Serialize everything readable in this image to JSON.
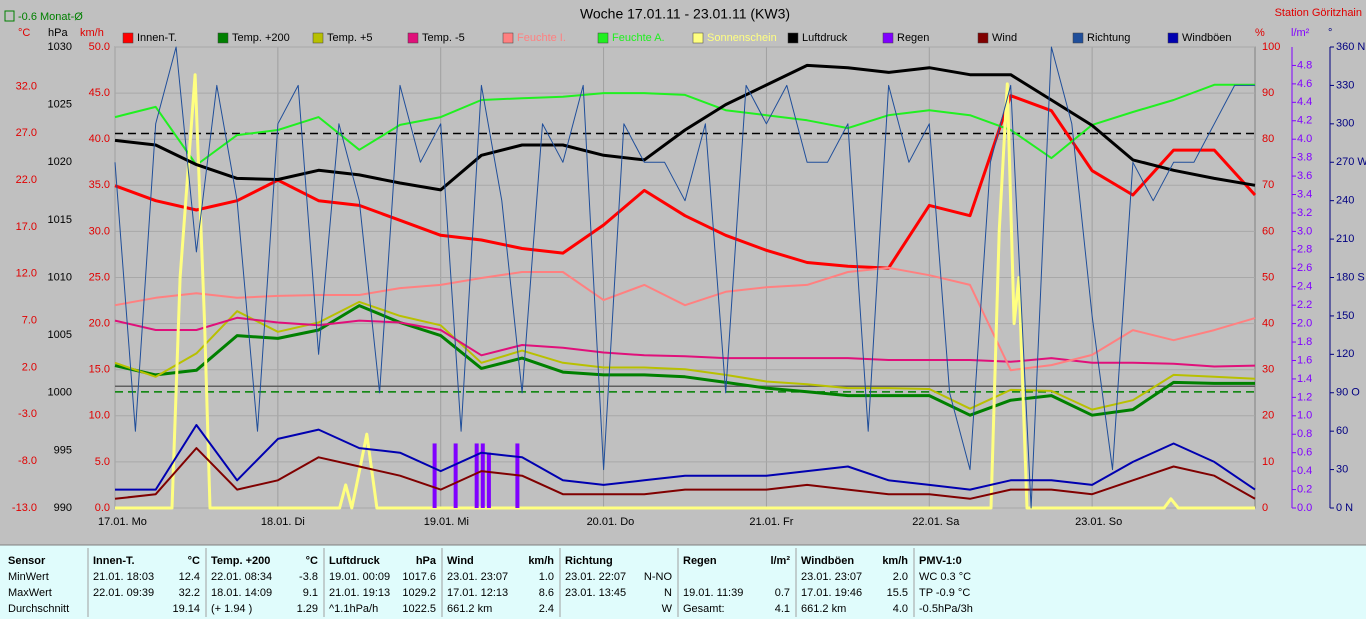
{
  "chart_data": {
    "type": "line",
    "title": "Woche 17.01.11 - 23.01.11 (KW3)",
    "station": "Station Göritzhain",
    "month_mean_label": "-0.6 Monat-Ø",
    "grid": true,
    "grid_axis": "speed",
    "xlim": [
      0,
      168
    ],
    "xticks": [
      {
        "value": 0,
        "label": "17.01. Mo"
      },
      {
        "value": 24,
        "label": "18.01. Di"
      },
      {
        "value": 48,
        "label": "19.01. Mi"
      },
      {
        "value": 72,
        "label": "20.01. Do"
      },
      {
        "value": 96,
        "label": "21.01. Fr"
      },
      {
        "value": 120,
        "label": "22.01. Sa"
      },
      {
        "value": 144,
        "label": "23.01. So"
      }
    ],
    "x": [
      0,
      6,
      12,
      18,
      24,
      30,
      36,
      42,
      48,
      54,
      60,
      66,
      72,
      78,
      84,
      90,
      96,
      102,
      108,
      114,
      120,
      126,
      132,
      138,
      144,
      150,
      156,
      162,
      168
    ],
    "axes": [
      {
        "id": "celsius",
        "unit": "°C",
        "color": "#e00000",
        "lim": [
          -13,
          36.2
        ],
        "ticks": [
          {
            "value": -13,
            "label": "-13.0"
          },
          {
            "value": -8,
            "label": "-8.0"
          },
          {
            "value": -3,
            "label": "-3.0"
          },
          {
            "value": 2,
            "label": "2.0"
          },
          {
            "value": 7,
            "label": "7.0"
          },
          {
            "value": 12,
            "label": "12.0"
          },
          {
            "value": 17,
            "label": "17.0"
          },
          {
            "value": 22,
            "label": "22.0"
          },
          {
            "value": 27,
            "label": "27.0"
          },
          {
            "value": 32,
            "label": "32.0"
          }
        ]
      },
      {
        "id": "hpa",
        "unit": "hPa",
        "color": "#000000",
        "lim": [
          990,
          1030
        ],
        "ticks": [
          990,
          995,
          1000,
          1005,
          1010,
          1015,
          1020,
          1025,
          1030
        ]
      },
      {
        "id": "speed",
        "unit": "km/h",
        "color": "#e00000",
        "lim": [
          0,
          50
        ],
        "ticks": [
          {
            "value": 0,
            "label": "0.0"
          },
          {
            "value": 5,
            "label": "5.0"
          },
          {
            "value": 10,
            "label": "10.0"
          },
          {
            "value": 15,
            "label": "15.0"
          },
          {
            "value": 20,
            "label": "20.0"
          },
          {
            "value": 25,
            "label": "25.0"
          },
          {
            "value": 30,
            "label": "30.0"
          },
          {
            "value": 35,
            "label": "35.0"
          },
          {
            "value": 40,
            "label": "40.0"
          },
          {
            "value": 45,
            "label": "45.0"
          },
          {
            "value": 50,
            "label": "50.0"
          }
        ]
      },
      {
        "id": "pct",
        "unit": "%",
        "color": "#e00000",
        "lim": [
          0,
          100
        ],
        "ticks": [
          0,
          10,
          20,
          30,
          40,
          50,
          60,
          70,
          80,
          90,
          100
        ]
      },
      {
        "id": "rain",
        "unit": "l/m²",
        "color": "#8000ff",
        "lim": [
          0,
          5.0
        ],
        "ticks": [
          {
            "value": 0,
            "label": "0.0"
          },
          0.2,
          0.4,
          0.6,
          0.8,
          {
            "value": 1,
            "label": "1.0"
          },
          1.2,
          1.4,
          1.6,
          1.8,
          {
            "value": 2,
            "label": "2.0"
          },
          2.2,
          2.4,
          2.6,
          2.8,
          {
            "value": 3,
            "label": "3.0"
          },
          3.2,
          3.4,
          3.6,
          3.8,
          {
            "value": 4,
            "label": "4.0"
          },
          4.2,
          4.4,
          4.6,
          4.8
        ]
      },
      {
        "id": "dir",
        "unit": "°",
        "color": "#000080",
        "lim": [
          0,
          360
        ],
        "ticks": [
          {
            "value": 0,
            "label": "0 N"
          },
          30,
          60,
          {
            "value": 90,
            "label": "90 O"
          },
          120,
          150,
          {
            "value": 180,
            "label": "180 S"
          },
          210,
          240,
          {
            "value": 270,
            "label": "270 W"
          },
          300,
          330,
          {
            "value": 360,
            "label": "360 N"
          }
        ]
      }
    ],
    "ref_lines": [
      {
        "axis": "celsius",
        "value": 0,
        "color": "#606060",
        "dash": false
      },
      {
        "axis": "hpa",
        "value": 1022.5,
        "color": "#000000",
        "dash": true
      },
      {
        "axis": "celsius",
        "value": -0.6,
        "color": "#008000",
        "dash": true
      }
    ],
    "series": [
      {
        "name": "Innen-T.",
        "color": "#ff0000",
        "axis": "celsius",
        "width": 3,
        "values": [
          21.4,
          19.8,
          18.8,
          19.8,
          22.0,
          19.8,
          19.3,
          17.7,
          16.1,
          15.6,
          14.7,
          14.2,
          17.2,
          20.9,
          18.2,
          16.1,
          14.5,
          13.2,
          12.8,
          12.6,
          19.3,
          18.2,
          31.0,
          29.4,
          23.0,
          20.4,
          25.2,
          25.2,
          20.4
        ]
      },
      {
        "name": "Temp. +200",
        "color": "#008000",
        "axis": "celsius",
        "width": 3,
        "values": [
          2.2,
          1.2,
          1.7,
          5.4,
          5.1,
          6.0,
          8.6,
          6.8,
          5.4,
          1.9,
          3.0,
          1.5,
          1.2,
          1.2,
          1.0,
          0.4,
          -0.2,
          -0.6,
          -1.0,
          -1.0,
          -1.0,
          -3.1,
          -1.5,
          -1.0,
          -3.1,
          -2.5,
          0.4,
          0.3,
          0.3
        ]
      },
      {
        "name": "Temp. +5",
        "color": "#b8c000",
        "axis": "celsius",
        "width": 2,
        "values": [
          2.5,
          1.0,
          3.5,
          8.0,
          5.8,
          6.8,
          9.0,
          7.5,
          6.5,
          2.5,
          3.8,
          2.5,
          2.0,
          2.0,
          1.8,
          1.2,
          0.5,
          0.2,
          -0.2,
          -0.2,
          -0.3,
          -2.4,
          -0.4,
          -0.5,
          -2.5,
          -1.5,
          1.2,
          1.0,
          0.8
        ]
      },
      {
        "name": "Temp. -5",
        "color": "#e0107a",
        "axis": "celsius",
        "width": 2,
        "values": [
          7.0,
          6.0,
          6.0,
          7.3,
          6.8,
          6.5,
          7.0,
          6.8,
          6.0,
          3.3,
          4.4,
          4.1,
          3.6,
          3.3,
          3.2,
          3.0,
          3.0,
          3.0,
          3.0,
          2.8,
          2.8,
          2.8,
          2.6,
          3.0,
          2.5,
          2.5,
          2.4,
          2.1,
          2.2
        ]
      },
      {
        "name": "Feuchte I.",
        "color": "#ff8080",
        "axis": "pct",
        "width": 2,
        "legend_text_colored": true,
        "values": [
          44.0,
          45.6,
          46.6,
          45.6,
          46.0,
          46.2,
          46.2,
          47.7,
          48.4,
          49.9,
          51.2,
          51.2,
          45.1,
          48.4,
          44.0,
          46.9,
          47.9,
          48.4,
          51.2,
          52.1,
          50.5,
          48.4,
          29.9,
          31.0,
          33.2,
          38.6,
          36.4,
          38.6,
          41.2
        ]
      },
      {
        "name": "Feuchte A.",
        "color": "#20f020",
        "axis": "pct",
        "width": 2,
        "legend_text_colored": true,
        "values": [
          84.8,
          87.0,
          74.4,
          80.9,
          82.0,
          84.8,
          77.7,
          83.1,
          84.8,
          88.5,
          88.9,
          89.2,
          90.0,
          90.0,
          89.6,
          86.3,
          85.2,
          84.1,
          82.4,
          85.2,
          86.3,
          85.2,
          82.0,
          75.9,
          83.1,
          85.9,
          88.5,
          91.8,
          91.8
        ]
      },
      {
        "name": "Sonnenschein",
        "color": "#ffff80",
        "axis": "pct",
        "width": 3,
        "legend_text_colored": true,
        "x": [
          0,
          8.4,
          9.6,
          11.8,
          13.2,
          14.0,
          33.1,
          34.0,
          34.9,
          35.6,
          37.1,
          38.6,
          129.1,
          130.3,
          131.5,
          132.5,
          133.2,
          134.4,
          154.6,
          155.6,
          156.7,
          168
        ],
        "values": [
          0,
          0,
          50,
          94,
          40,
          0,
          0,
          5,
          0,
          5,
          16,
          0,
          0,
          60,
          92,
          40,
          50,
          0,
          0,
          2,
          0,
          0
        ]
      },
      {
        "name": "Luftdruck",
        "color": "#000000",
        "axis": "hpa",
        "width": 3,
        "values": [
          1021.9,
          1021.5,
          1019.8,
          1018.6,
          1018.5,
          1019.3,
          1018.9,
          1018.2,
          1017.6,
          1020.6,
          1021.5,
          1021.5,
          1020.6,
          1020.2,
          1022.8,
          1025.0,
          1026.7,
          1028.4,
          1028.2,
          1027.8,
          1028.2,
          1027.6,
          1027.6,
          1025.4,
          1023.2,
          1020.2,
          1019.3,
          1018.6,
          1018.0
        ]
      },
      {
        "name": "Regen",
        "color": "#8000ff",
        "axis": "rain",
        "type": "bar",
        "x": [
          47.1,
          50.2,
          53.3,
          54.2,
          55.1,
          59.3
        ],
        "values": [
          0.7,
          0.7,
          0.7,
          0.7,
          0.6,
          0.7
        ]
      },
      {
        "name": "Wind",
        "color": "#800000",
        "axis": "speed",
        "width": 2,
        "values": [
          1.0,
          1.5,
          6.5,
          2.0,
          3.0,
          5.5,
          4.5,
          3.5,
          2.0,
          4.0,
          3.5,
          1.5,
          1.5,
          1.5,
          2.0,
          2.0,
          2.0,
          2.5,
          2.0,
          1.5,
          1.5,
          1.0,
          2.0,
          2.0,
          1.5,
          3.0,
          4.5,
          3.5,
          1.0
        ]
      },
      {
        "name": "Richtung",
        "color": "#1f4e9a",
        "axis": "dir",
        "width": 1,
        "x": [
          0,
          3,
          6,
          9,
          12,
          15,
          18,
          21,
          24,
          27,
          30,
          33,
          36,
          39,
          42,
          45,
          48,
          51,
          54,
          57,
          60,
          63,
          66,
          69,
          72,
          75,
          78,
          81,
          84,
          87,
          90,
          93,
          96,
          99,
          102,
          105,
          108,
          111,
          114,
          117,
          120,
          123,
          126,
          129,
          132,
          135,
          138,
          141,
          144,
          147,
          150,
          153,
          156,
          159,
          162,
          165,
          168
        ],
        "values": [
          270,
          60,
          300,
          360,
          200,
          330,
          240,
          60,
          300,
          330,
          120,
          300,
          240,
          90,
          330,
          270,
          300,
          60,
          330,
          240,
          90,
          300,
          270,
          330,
          30,
          300,
          270,
          270,
          240,
          300,
          90,
          330,
          300,
          330,
          270,
          270,
          300,
          60,
          330,
          270,
          300,
          90,
          30,
          270,
          330,
          0,
          360,
          300,
          150,
          30,
          270,
          240,
          270,
          270,
          300,
          330,
          330
        ]
      },
      {
        "name": "Windböen",
        "color": "#0000b0",
        "axis": "speed",
        "width": 2,
        "values": [
          2.0,
          2.0,
          9.0,
          3.0,
          7.5,
          8.5,
          6.5,
          6.0,
          4.0,
          6.0,
          5.5,
          3.0,
          2.5,
          3.0,
          3.5,
          3.5,
          3.5,
          4.0,
          4.5,
          3.0,
          2.5,
          2.0,
          3.0,
          3.0,
          2.5,
          5.0,
          7.0,
          5.0,
          2.0
        ]
      }
    ]
  },
  "stats": {
    "header": [
      "Sensor",
      "MinWert",
      "MaxWert",
      "Durchschnitt"
    ],
    "columns": [
      {
        "title": "Innen-T.",
        "unit": "°C",
        "rows": [
          {
            "left": "21.01. 18:03",
            "right": "12.4"
          },
          {
            "left": "22.01. 09:39",
            "right": "32.2"
          },
          {
            "right": "19.14"
          }
        ]
      },
      {
        "title": "Temp. +200",
        "unit": "°C",
        "rows": [
          {
            "left": "22.01. 08:34",
            "right": "-3.8"
          },
          {
            "left": "18.01. 14:09",
            "right": "9.1"
          },
          {
            "left": "(+ 1.94 )",
            "right": "1.29"
          }
        ]
      },
      {
        "title": "Luftdruck",
        "unit": "hPa",
        "rows": [
          {
            "left": "19.01. 00:09",
            "right": "1017.6"
          },
          {
            "left": "21.01. 19:13",
            "right": "1029.2"
          },
          {
            "left": "^1.1hPa/h",
            "right": "1022.5"
          }
        ]
      },
      {
        "title": "Wind",
        "unit": "km/h",
        "rows": [
          {
            "left": "23.01. 23:07",
            "right": "1.0"
          },
          {
            "left": "17.01. 12:13",
            "right": "8.6"
          },
          {
            "left": "661.2 km",
            "right": "2.4"
          }
        ]
      },
      {
        "title": "Richtung",
        "rows": [
          {
            "left": "23.01. 22:07",
            "right": "N-NO"
          },
          {
            "left": "23.01. 13:45",
            "right": "N"
          },
          {
            "right": "W"
          }
        ]
      },
      {
        "title": "Regen",
        "unit": "l/m²",
        "rows": [
          {},
          {
            "left": "19.01. 11:39",
            "right": "0.7"
          },
          {
            "left": "Gesamt:",
            "right": "4.1"
          }
        ]
      },
      {
        "title": "Windböen",
        "unit": "km/h",
        "rows": [
          {
            "left": "23.01. 23:07",
            "right": "2.0"
          },
          {
            "left": "17.01. 19:46",
            "right": "15.5"
          },
          {
            "left": "661.2 km",
            "right": "4.0"
          }
        ]
      },
      {
        "title": "PMV-1:0",
        "rows": [
          {
            "left": "WC 0.3 °C"
          },
          {
            "left": "TP -0.9 °C"
          },
          {
            "left": "-0.5hPa/3h"
          }
        ]
      }
    ]
  }
}
